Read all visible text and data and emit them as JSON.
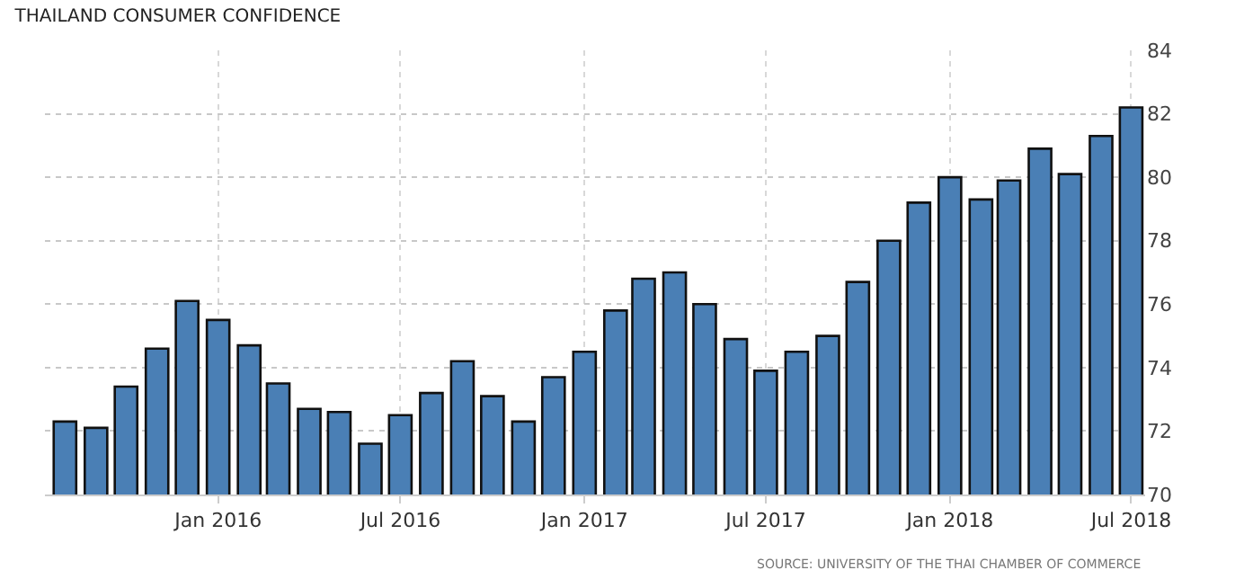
{
  "chart_data": {
    "type": "bar",
    "title": "THAILAND CONSUMER CONFIDENCE",
    "x": [
      "2015-08",
      "2015-09",
      "2015-10",
      "2015-11",
      "2015-12",
      "2016-01",
      "2016-02",
      "2016-03",
      "2016-04",
      "2016-05",
      "2016-06",
      "2016-07",
      "2016-08",
      "2016-09",
      "2016-10",
      "2016-11",
      "2016-12",
      "2017-01",
      "2017-02",
      "2017-03",
      "2017-04",
      "2017-05",
      "2017-06",
      "2017-07",
      "2017-08",
      "2017-09",
      "2017-10",
      "2017-11",
      "2017-12",
      "2018-01",
      "2018-02",
      "2018-03",
      "2018-04",
      "2018-05",
      "2018-06",
      "2018-07"
    ],
    "values": [
      72.3,
      72.1,
      73.4,
      74.6,
      76.1,
      75.5,
      74.7,
      73.5,
      72.7,
      72.6,
      71.6,
      72.5,
      73.2,
      74.2,
      73.1,
      72.3,
      73.7,
      74.5,
      75.8,
      76.8,
      77.0,
      76.0,
      74.9,
      73.9,
      74.5,
      75.0,
      76.7,
      78.0,
      79.2,
      80.0,
      79.3,
      79.9,
      80.9,
      80.1,
      81.3,
      82.2
    ],
    "color": "#4a7fb5",
    "xlim": [
      "2015-07-12",
      "2018-07-15"
    ],
    "xticks": [
      {
        "value": "2016-01",
        "label": "Jan 2016"
      },
      {
        "value": "2016-07",
        "label": "Jul 2016"
      },
      {
        "value": "2017-01",
        "label": "Jan 2017"
      },
      {
        "value": "2017-07",
        "label": "Jul 2017"
      },
      {
        "value": "2018-01",
        "label": "Jan 2018"
      },
      {
        "value": "2018-07",
        "label": "Jul 2018"
      }
    ],
    "ylim": [
      70,
      84
    ],
    "yticks": [
      70,
      72,
      74,
      76,
      78,
      80,
      82,
      84
    ],
    "grid": true,
    "annotations": [
      "SOURCE: UNIVERSITY OF THE THAI CHAMBER OF COMMERCE"
    ]
  }
}
